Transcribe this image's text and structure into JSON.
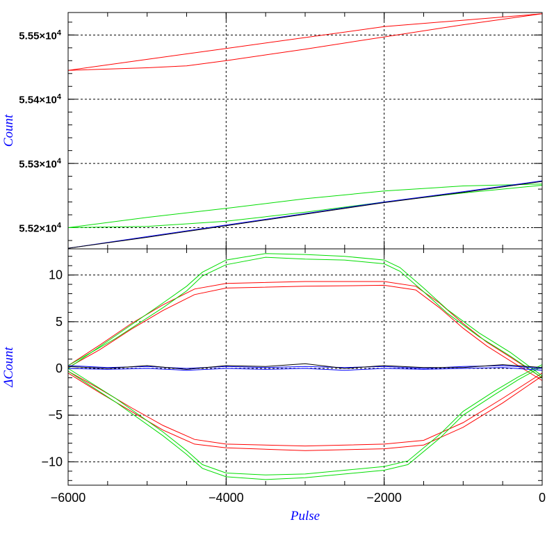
{
  "chart_data": [
    {
      "panel": "top",
      "type": "line",
      "xlabel": "",
      "ylabel": "Count",
      "ylabel_color": "#0000ff",
      "xlim": [
        -6000,
        0
      ],
      "ylim": [
        55167,
        55535
      ],
      "grid": true,
      "x_ticks": [
        -6000,
        -4000,
        -2000,
        0
      ],
      "y_ticks": [
        {
          "value": 55200,
          "mantissa": "5.52×10",
          "exp": "4"
        },
        {
          "value": 55300,
          "mantissa": "5.53×10",
          "exp": "4"
        },
        {
          "value": 55400,
          "mantissa": "5.54×10",
          "exp": "4"
        },
        {
          "value": 55500,
          "mantissa": "5.55×10",
          "exp": "4"
        }
      ],
      "series": [
        {
          "color": "#ff0000",
          "x": [
            -6000,
            -5000,
            -4000,
            -3000,
            -2000,
            -1000,
            0
          ],
          "y": [
            55445,
            55462,
            55479,
            55496,
            55513,
            55523,
            55533
          ]
        },
        {
          "color": "#ff0000",
          "x": [
            -6000,
            -5000,
            -4500,
            -4000,
            -3000,
            -2000,
            -1000,
            0
          ],
          "y": [
            55445,
            55449,
            55452,
            55460,
            55478,
            55497,
            55516,
            55533
          ]
        },
        {
          "color": "#00dd00",
          "x": [
            -6000,
            -5000,
            -4000,
            -3000,
            -2000,
            -1000,
            0
          ],
          "y": [
            55200,
            55216,
            55230,
            55245,
            55257,
            55265,
            55268
          ]
        },
        {
          "color": "#00dd00",
          "x": [
            -6000,
            -5000,
            -4000,
            -3000,
            -2000,
            -1000,
            0
          ],
          "y": [
            55200,
            55202,
            55210,
            55224,
            55240,
            55254,
            55266
          ]
        },
        {
          "color": "#0000ff",
          "x": [
            -6000,
            -5000,
            -4000,
            -3000,
            -2000,
            -1000,
            0
          ],
          "y": [
            55168,
            55186,
            55204,
            55222,
            55240,
            55256,
            55273
          ]
        },
        {
          "color": "#000000",
          "x": [
            -6000,
            -5000,
            -4000,
            -3000,
            -2000,
            -1000,
            0
          ],
          "y": [
            55168,
            55185,
            55203,
            55221,
            55239,
            55255,
            55272
          ]
        }
      ]
    },
    {
      "panel": "bottom",
      "type": "line",
      "xlabel": "Pulse",
      "xlabel_color": "#0000ff",
      "ylabel": "ΔCount",
      "ylabel_color": "#0000ff",
      "xlim": [
        -6000,
        0
      ],
      "ylim": [
        -12.5,
        12.8
      ],
      "grid": true,
      "x_ticks": [
        {
          "value": -6000,
          "label": "−6000"
        },
        {
          "value": -4000,
          "label": "−4000"
        },
        {
          "value": -2000,
          "label": "−2000"
        },
        {
          "value": 0,
          "label": "0"
        }
      ],
      "y_ticks": [
        {
          "value": -10,
          "label": "−10"
        },
        {
          "value": -5,
          "label": "−5"
        },
        {
          "value": 0,
          "label": "0"
        },
        {
          "value": 5,
          "label": "5"
        },
        {
          "value": 10,
          "label": "10"
        }
      ],
      "series": [
        {
          "color": "#ff0000",
          "x": [
            -6000,
            -5600,
            -5200,
            -4800,
            -4400,
            -4000,
            -3000,
            -2000,
            -1600,
            -1300,
            -1000,
            -700,
            -400,
            0
          ],
          "y": [
            0.3,
            2.5,
            4.8,
            6.8,
            8.5,
            9.1,
            9.3,
            9.3,
            8.8,
            7.0,
            4.8,
            2.8,
            1.2,
            -1.0
          ]
        },
        {
          "color": "#ff0000",
          "x": [
            -6000,
            -5600,
            -5200,
            -4800,
            -4400,
            -4000,
            -3000,
            -2000,
            -1600,
            -1300,
            -1000,
            -700,
            -400,
            0
          ],
          "y": [
            0.1,
            2.0,
            4.2,
            6.2,
            7.9,
            8.6,
            8.8,
            8.9,
            8.4,
            6.5,
            4.3,
            2.4,
            0.8,
            -1.3
          ]
        },
        {
          "color": "#ff0000",
          "x": [
            -6000,
            -5600,
            -5200,
            -4800,
            -4400,
            -4000,
            -3000,
            -2000,
            -1500,
            -1000,
            -500,
            0
          ],
          "y": [
            -0.5,
            -2.6,
            -4.6,
            -6.6,
            -8.1,
            -8.5,
            -8.8,
            -8.6,
            -8.2,
            -6.3,
            -3.7,
            -0.8
          ]
        },
        {
          "color": "#ff0000",
          "x": [
            -6000,
            -5600,
            -5200,
            -4800,
            -4400,
            -4000,
            -3000,
            -2000,
            -1500,
            -1000,
            -500,
            0
          ],
          "y": [
            -0.3,
            -2.2,
            -4.2,
            -6.1,
            -7.6,
            -8.1,
            -8.3,
            -8.1,
            -7.7,
            -5.8,
            -3.2,
            -0.5
          ]
        },
        {
          "color": "#00dd00",
          "x": [
            -6000,
            -5400,
            -4800,
            -4500,
            -4300,
            -4000,
            -3500,
            -3000,
            -2500,
            -2000,
            -1800,
            -1500,
            -1200,
            -800,
            -400,
            0
          ],
          "y": [
            0.0,
            3.5,
            7.0,
            8.8,
            10.3,
            11.6,
            12.3,
            12.2,
            12.0,
            11.6,
            10.8,
            8.6,
            6.3,
            3.8,
            1.7,
            -0.8
          ]
        },
        {
          "color": "#00dd00",
          "x": [
            -6000,
            -5400,
            -4800,
            -4500,
            -4300,
            -4000,
            -3500,
            -3000,
            -2500,
            -2000,
            -1800,
            -1500,
            -1200,
            -800,
            -400,
            0
          ],
          "y": [
            0.3,
            3.2,
            6.5,
            8.3,
            9.9,
            11.1,
            11.9,
            11.7,
            11.6,
            11.2,
            10.4,
            8.2,
            5.9,
            3.4,
            1.3,
            -1.0
          ]
        },
        {
          "color": "#00dd00",
          "x": [
            -6000,
            -5400,
            -4800,
            -4500,
            -4300,
            -4000,
            -3500,
            -3000,
            -2500,
            -2000,
            -1700,
            -1300,
            -1000,
            -600,
            -300,
            0
          ],
          "y": [
            -0.3,
            -3.6,
            -7.2,
            -9.2,
            -10.7,
            -11.6,
            -11.9,
            -11.7,
            -11.3,
            -10.9,
            -10.3,
            -7.5,
            -5.0,
            -2.8,
            -1.2,
            0.2
          ]
        },
        {
          "color": "#00dd00",
          "x": [
            -6000,
            -5400,
            -4800,
            -4500,
            -4300,
            -4000,
            -3500,
            -3000,
            -2500,
            -2000,
            -1700,
            -1300,
            -1000,
            -600,
            -300,
            0
          ],
          "y": [
            0.0,
            -3.2,
            -6.8,
            -8.8,
            -10.3,
            -11.2,
            -11.4,
            -11.3,
            -10.9,
            -10.5,
            -9.9,
            -7.1,
            -4.6,
            -2.4,
            -0.9,
            0.4
          ]
        },
        {
          "color": "#0000ff",
          "x": [
            -6000,
            -5500,
            -5000,
            -4500,
            -4000,
            -3500,
            -3000,
            -2500,
            -2000,
            -1500,
            -1000,
            -500,
            0
          ],
          "y": [
            0.3,
            0.1,
            0.2,
            0.0,
            0.2,
            0.1,
            0.2,
            0.1,
            0.2,
            0.0,
            0.2,
            0.3,
            0.0
          ]
        },
        {
          "color": "#0000ff",
          "x": [
            -6000,
            -5500,
            -5000,
            -4500,
            -4000,
            -3500,
            -3000,
            -2500,
            -2000,
            -1500,
            -1000,
            -500,
            0
          ],
          "y": [
            0.0,
            -0.1,
            0.0,
            -0.2,
            0.0,
            -0.1,
            0.0,
            -0.2,
            0.0,
            -0.1,
            0.0,
            0.1,
            -0.2
          ]
        },
        {
          "color": "#000000",
          "x": [
            -6000,
            -5500,
            -5000,
            -4500,
            -4000,
            -3500,
            -3000,
            -2500,
            -2000,
            -1500,
            -1000,
            -500,
            0
          ],
          "y": [
            0.2,
            0.0,
            0.3,
            -0.1,
            0.3,
            0.2,
            0.5,
            0.0,
            0.3,
            0.1,
            0.1,
            0.4,
            0.1
          ]
        }
      ]
    }
  ]
}
